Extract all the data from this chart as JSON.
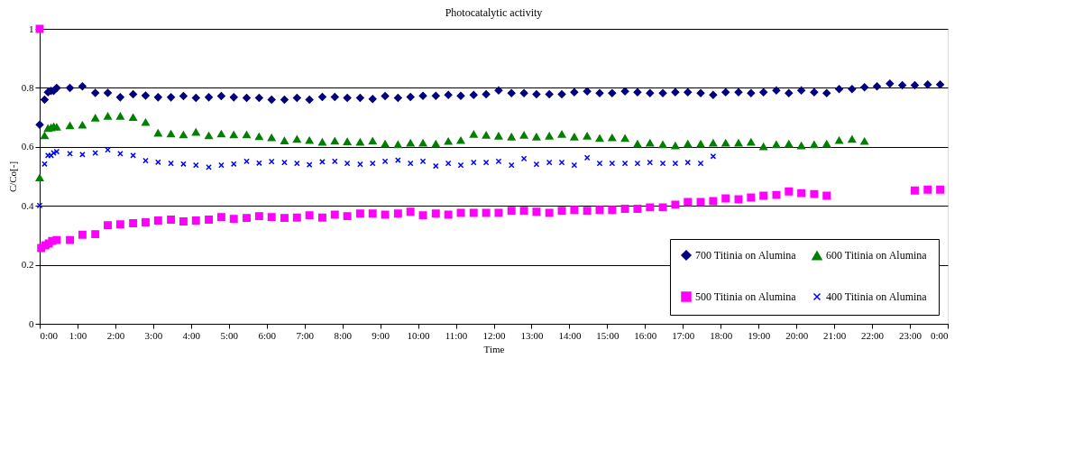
{
  "chart_data": {
    "type": "scatter",
    "title": "Photocatalytic activity",
    "xlabel": "Time",
    "ylabel": "C/Co[-]",
    "x": [
      0,
      0.13,
      0.22,
      0.3,
      0.37,
      0.45,
      0.8,
      1.13,
      1.47,
      1.8,
      2.13,
      2.47,
      2.8,
      3.13,
      3.47,
      3.8,
      4.13,
      4.47,
      4.8,
      5.13,
      5.47,
      5.8,
      6.13,
      6.47,
      6.8,
      7.13,
      7.47,
      7.8,
      8.13,
      8.47,
      8.8,
      9.13,
      9.47,
      9.8,
      10.13,
      10.47,
      10.8,
      11.13,
      11.47,
      11.8,
      12.13,
      12.47,
      12.8,
      13.13,
      13.47,
      13.8,
      14.13,
      14.47,
      14.8,
      15.13,
      15.47,
      15.8,
      16.13,
      16.47,
      16.8,
      17.13,
      17.47,
      17.8,
      18.13,
      18.47,
      18.8,
      19.13,
      19.47,
      19.8,
      20.13,
      20.47,
      20.8,
      21.13,
      21.47,
      21.8,
      22.13,
      22.47,
      22.8,
      23.13,
      23.47,
      23.8
    ],
    "series": [
      {
        "name": "700 Titinia on Alumina",
        "color": "#000080",
        "marker": "diamond",
        "values": [
          0.675,
          0.76,
          0.785,
          0.79,
          0.79,
          0.8,
          0.8,
          0.805,
          0.783,
          0.783,
          0.768,
          0.778,
          0.774,
          0.768,
          0.768,
          0.772,
          0.766,
          0.768,
          0.772,
          0.768,
          0.766,
          0.766,
          0.76,
          0.76,
          0.766,
          0.76,
          0.769,
          0.769,
          0.766,
          0.766,
          0.762,
          0.772,
          0.766,
          0.769,
          0.773,
          0.773,
          0.776,
          0.773,
          0.776,
          0.778,
          0.791,
          0.782,
          0.782,
          0.778,
          0.778,
          0.778,
          0.785,
          0.788,
          0.782,
          0.782,
          0.788,
          0.785,
          0.782,
          0.782,
          0.785,
          0.785,
          0.782,
          0.776,
          0.785,
          0.785,
          0.782,
          0.785,
          0.791,
          0.782,
          0.791,
          0.785,
          0.782,
          0.796,
          0.796,
          0.802,
          0.805,
          0.814,
          0.809,
          0.809,
          0.811,
          0.811
        ]
      },
      {
        "name": "600 Titinia on Alumina",
        "color": "#008000",
        "marker": "triangle",
        "values": [
          0.495,
          0.638,
          0.663,
          0.665,
          0.669,
          0.667,
          0.672,
          0.674,
          0.698,
          0.704,
          0.704,
          0.7,
          0.683,
          0.647,
          0.644,
          0.641,
          0.65,
          0.638,
          0.644,
          0.641,
          0.641,
          0.635,
          0.631,
          0.621,
          0.626,
          0.622,
          0.616,
          0.62,
          0.618,
          0.616,
          0.62,
          0.61,
          0.608,
          0.613,
          0.613,
          0.61,
          0.619,
          0.622,
          0.643,
          0.64,
          0.637,
          0.634,
          0.64,
          0.634,
          0.637,
          0.643,
          0.634,
          0.637,
          0.629,
          0.631,
          0.629,
          0.61,
          0.613,
          0.608,
          0.604,
          0.61,
          0.61,
          0.613,
          0.613,
          0.613,
          0.616,
          0.601,
          0.608,
          0.61,
          0.604,
          0.608,
          0.61,
          0.622,
          0.626,
          0.619,
          null,
          null,
          null,
          null,
          null,
          null
        ]
      },
      {
        "name": "500 Titinia on Alumina",
        "color": "#ff00ff",
        "marker": "square",
        "x": [
          0,
          0.04,
          0.15,
          0.24,
          0.33,
          0.45,
          0.8,
          1.13,
          1.47,
          1.8,
          2.13,
          2.47,
          2.8,
          3.13,
          3.47,
          3.8,
          4.13,
          4.47,
          4.8,
          5.13,
          5.47,
          5.8,
          6.13,
          6.47,
          6.8,
          7.13,
          7.47,
          7.8,
          8.13,
          8.47,
          8.8,
          9.13,
          9.47,
          9.8,
          10.13,
          10.47,
          10.8,
          11.13,
          11.47,
          11.8,
          12.13,
          12.47,
          12.8,
          13.13,
          13.47,
          13.8,
          14.13,
          14.47,
          14.8,
          15.13,
          15.47,
          15.8,
          16.13,
          16.47,
          16.8,
          17.13,
          17.47,
          17.8,
          18.13,
          18.47,
          18.8,
          19.13,
          19.47,
          19.8,
          20.13,
          20.47,
          20.8,
          23.13,
          23.47,
          23.8
        ],
        "values": [
          1.0,
          0.257,
          0.266,
          0.272,
          0.281,
          0.284,
          0.284,
          0.302,
          0.304,
          0.334,
          0.337,
          0.341,
          0.344,
          0.35,
          0.353,
          0.347,
          0.35,
          0.353,
          0.362,
          0.356,
          0.359,
          0.365,
          0.362,
          0.359,
          0.36,
          0.368,
          0.36,
          0.37,
          0.365,
          0.374,
          0.374,
          0.37,
          0.374,
          0.38,
          0.368,
          0.374,
          0.37,
          0.376,
          0.376,
          0.376,
          0.376,
          0.383,
          0.383,
          0.38,
          0.376,
          0.383,
          0.386,
          0.383,
          0.386,
          0.386,
          0.39,
          0.39,
          0.395,
          0.395,
          0.404,
          0.413,
          0.413,
          0.416,
          0.425,
          0.422,
          0.428,
          0.434,
          0.437,
          0.449,
          0.443,
          0.44,
          0.434,
          0.452,
          0.455,
          0.455
        ]
      },
      {
        "name": "400 Titinia on Alumina",
        "color": "#0000ff",
        "marker": "cross",
        "values": [
          0.401,
          0.542,
          0.571,
          0.571,
          0.579,
          0.584,
          0.577,
          0.574,
          0.579,
          0.59,
          0.577,
          0.571,
          0.553,
          0.548,
          0.544,
          0.542,
          0.538,
          0.531,
          0.538,
          0.542,
          0.551,
          0.545,
          0.55,
          0.547,
          0.544,
          0.539,
          0.549,
          0.551,
          0.544,
          0.541,
          0.544,
          0.551,
          0.555,
          0.544,
          0.551,
          0.535,
          0.544,
          0.538,
          0.547,
          0.547,
          0.551,
          0.538,
          0.56,
          0.541,
          0.547,
          0.547,
          0.538,
          0.563,
          0.544,
          0.544,
          0.544,
          0.544,
          0.547,
          0.544,
          0.544,
          0.547,
          0.544,
          0.568,
          null,
          null,
          null,
          null,
          null,
          null,
          null,
          null,
          null,
          null,
          null,
          null,
          null,
          null,
          null,
          null,
          null,
          null
        ]
      }
    ],
    "xlim": [
      0,
      24
    ],
    "xticks": [
      {
        "value": 0,
        "label": "0:00"
      },
      {
        "value": 1,
        "label": "1:00"
      },
      {
        "value": 2,
        "label": "2:00"
      },
      {
        "value": 3,
        "label": "3:00"
      },
      {
        "value": 4,
        "label": "4:00"
      },
      {
        "value": 5,
        "label": "5:00"
      },
      {
        "value": 6,
        "label": "6:00"
      },
      {
        "value": 7,
        "label": "7:00"
      },
      {
        "value": 8,
        "label": "8:00"
      },
      {
        "value": 9,
        "label": "9:00"
      },
      {
        "value": 10,
        "label": "10:00"
      },
      {
        "value": 11,
        "label": "11:00"
      },
      {
        "value": 12,
        "label": "12:00"
      },
      {
        "value": 13,
        "label": "13:00"
      },
      {
        "value": 14,
        "label": "14:00"
      },
      {
        "value": 15,
        "label": "15:00"
      },
      {
        "value": 16,
        "label": "16:00"
      },
      {
        "value": 17,
        "label": "17:00"
      },
      {
        "value": 18,
        "label": "18:00"
      },
      {
        "value": 19,
        "label": "19:00"
      },
      {
        "value": 20,
        "label": "20:00"
      },
      {
        "value": 21,
        "label": "21:00"
      },
      {
        "value": 22,
        "label": "22:00"
      },
      {
        "value": 23,
        "label": "23:00"
      },
      {
        "value": 24,
        "label": "0:00"
      }
    ],
    "ylim": [
      0,
      1
    ],
    "yticks": [
      0,
      0.2,
      0.4,
      0.6,
      0.8,
      1
    ],
    "grid": "y",
    "legend": "bottom right"
  }
}
